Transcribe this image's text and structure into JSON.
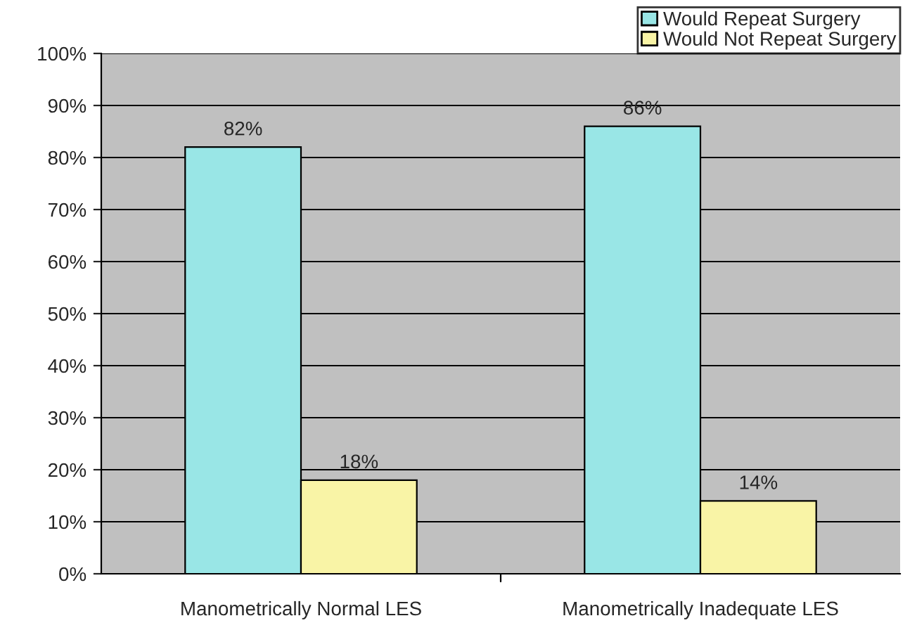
{
  "chart_data": {
    "type": "bar",
    "categories": [
      "Manometrically Normal LES",
      "Manometrically Inadequate LES"
    ],
    "series": [
      {
        "name": "Would Repeat Surgery",
        "color": "#99e6e6",
        "values": [
          82,
          86
        ],
        "value_labels": [
          "82%",
          "86%"
        ]
      },
      {
        "name": "Would Not Repeat Surgery",
        "color": "#f9f4a6",
        "values": [
          18,
          14
        ],
        "value_labels": [
          "18%",
          "14%"
        ]
      }
    ],
    "ylim": [
      0,
      100
    ],
    "yticks": [
      {
        "value": 0,
        "label": "0%"
      },
      {
        "value": 10,
        "label": "10%"
      },
      {
        "value": 20,
        "label": "20%"
      },
      {
        "value": 30,
        "label": "30%"
      },
      {
        "value": 40,
        "label": "40%"
      },
      {
        "value": 50,
        "label": "50%"
      },
      {
        "value": 60,
        "label": "60%"
      },
      {
        "value": 70,
        "label": "70%"
      },
      {
        "value": 80,
        "label": "80%"
      },
      {
        "value": 90,
        "label": "90%"
      },
      {
        "value": 100,
        "label": "100%"
      }
    ],
    "grid": "y",
    "legend": "top right"
  }
}
